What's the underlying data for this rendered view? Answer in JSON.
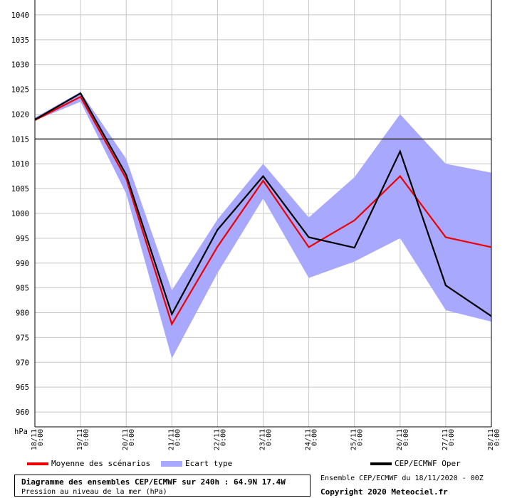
{
  "chart_data": {
    "type": "line",
    "yunit": "hPa",
    "ylim": [
      957,
      1043
    ],
    "yticks": [
      960,
      965,
      970,
      975,
      980,
      985,
      990,
      995,
      1000,
      1005,
      1010,
      1015,
      1020,
      1025,
      1030,
      1035,
      1040
    ],
    "reference_line": 1015,
    "grid": true,
    "categories": [
      {
        "date": "18/11",
        "time": "0:00"
      },
      {
        "date": "19/11",
        "time": "0:00"
      },
      {
        "date": "20/11",
        "time": "0:00"
      },
      {
        "date": "21/11",
        "time": "0:00"
      },
      {
        "date": "22/11",
        "time": "0:00"
      },
      {
        "date": "23/11",
        "time": "0:00"
      },
      {
        "date": "24/11",
        "time": "0:00"
      },
      {
        "date": "25/11",
        "time": "0:00"
      },
      {
        "date": "26/11",
        "time": "0:00"
      },
      {
        "date": "27/11",
        "time": "0:00"
      },
      {
        "date": "28/11",
        "time": "0:00"
      }
    ],
    "series": [
      {
        "name": "Ecart type",
        "kind": "band",
        "color": "#a8a8ff",
        "upper": [
          1019.3,
          1024.5,
          1011.0,
          984.5,
          998.8,
          1010.0,
          999.2,
          1007.3,
          1020.0,
          1010.0,
          1008.2
        ],
        "lower": [
          1018.7,
          1022.5,
          1004.0,
          970.8,
          988.0,
          1003.0,
          987.0,
          990.3,
          995.0,
          980.5,
          978.2
        ]
      },
      {
        "name": "Moyenne des scénarios",
        "kind": "line",
        "color": "#ee0000",
        "values": [
          1018.8,
          1023.5,
          1007.0,
          977.7,
          993.3,
          1006.6,
          993.2,
          998.6,
          1007.5,
          995.2,
          993.2
        ]
      },
      {
        "name": "CEP/ECMWF Oper",
        "kind": "line",
        "color": "#000000",
        "values": [
          1018.9,
          1024.2,
          1007.8,
          979.7,
          996.7,
          1007.5,
          995.2,
          993.1,
          1012.5,
          985.5,
          979.3
        ]
      }
    ],
    "legend": {
      "placement": "bottom",
      "items": [
        "Moyenne des scénarios",
        "Ecart type",
        "CEP/ECMWF Oper"
      ]
    }
  },
  "caption": {
    "title": "Diagramme des ensembles CEP/ECMWF sur 240h : 64.9N 17.4W",
    "subtitle": "Pression au niveau de la mer (hPa)"
  },
  "run_info": "Ensemble CEP/ECMWF du 18/11/2020 - 00Z",
  "copyright": "Copyright 2020 Meteociel.fr"
}
